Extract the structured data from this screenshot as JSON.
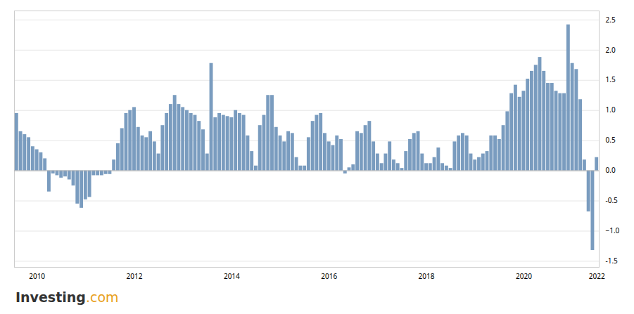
{
  "chart_data": {
    "type": "bar",
    "color": "#7a9cbf",
    "grid": true,
    "ylim": [
      -1.6,
      2.65
    ],
    "yticks": [
      -1.5,
      {
        "value": -1,
        "label": "−1.0"
      },
      -0.5,
      {
        "value": 0,
        "label": "0.0"
      },
      0.5,
      {
        "value": 1,
        "label": "1.0"
      },
      1.5,
      {
        "value": 2,
        "label": "2.0"
      },
      2.5
    ],
    "categories": [
      null,
      null,
      null,
      null,
      null,
      "2010",
      null,
      null,
      null,
      null,
      null,
      null,
      null,
      null,
      null,
      null,
      null,
      null,
      null,
      null,
      null,
      null,
      null,
      null,
      null,
      null,
      null,
      null,
      null,
      "2012",
      null,
      null,
      null,
      null,
      null,
      null,
      null,
      null,
      null,
      null,
      null,
      null,
      null,
      null,
      null,
      null,
      null,
      null,
      null,
      null,
      null,
      null,
      null,
      "2014",
      null,
      null,
      null,
      null,
      null,
      null,
      null,
      null,
      null,
      null,
      null,
      null,
      null,
      null,
      null,
      null,
      null,
      null,
      null,
      null,
      null,
      null,
      null,
      "2016",
      null,
      null,
      null,
      null,
      null,
      null,
      null,
      null,
      null,
      null,
      null,
      null,
      null,
      null,
      null,
      null,
      null,
      null,
      null,
      null,
      null,
      null,
      null,
      "2018",
      null,
      null,
      null,
      null,
      null,
      null,
      null,
      null,
      null,
      null,
      null,
      null,
      null,
      null,
      null,
      null,
      null,
      null,
      null,
      null,
      null,
      null,
      null,
      "2020",
      null,
      null,
      null,
      null,
      null,
      null,
      null,
      null,
      null,
      null,
      null,
      null,
      null,
      null,
      null,
      null,
      null,
      "2022"
    ],
    "values": [
      0.95,
      0.65,
      0.6,
      0.55,
      0.4,
      0.35,
      0.3,
      0.2,
      -0.35,
      -0.05,
      -0.08,
      -0.12,
      -0.1,
      -0.15,
      -0.25,
      -0.55,
      -0.62,
      -0.48,
      -0.44,
      -0.08,
      -0.08,
      -0.08,
      -0.06,
      -0.06,
      0.18,
      0.45,
      0.7,
      0.95,
      1.0,
      1.05,
      0.72,
      0.58,
      0.55,
      0.65,
      0.48,
      0.28,
      0.75,
      0.95,
      1.1,
      1.25,
      1.1,
      1.05,
      1.0,
      0.95,
      0.92,
      0.82,
      0.68,
      0.28,
      1.78,
      0.88,
      0.95,
      0.92,
      0.9,
      0.88,
      1.0,
      0.95,
      0.92,
      0.58,
      0.32,
      0.08,
      0.75,
      0.92,
      1.25,
      1.25,
      0.72,
      0.58,
      0.48,
      0.65,
      0.62,
      0.22,
      0.08,
      0.08,
      0.55,
      0.82,
      0.92,
      0.95,
      0.62,
      0.48,
      0.42,
      0.58,
      0.52,
      -0.05,
      0.05,
      0.1,
      0.65,
      0.62,
      0.75,
      0.82,
      0.48,
      0.28,
      0.12,
      0.28,
      0.48,
      0.18,
      0.12,
      0.04,
      0.32,
      0.52,
      0.62,
      0.65,
      0.28,
      0.12,
      0.12,
      0.22,
      0.38,
      0.12,
      0.08,
      0.04,
      0.48,
      0.58,
      0.62,
      0.58,
      0.28,
      0.18,
      0.22,
      0.28,
      0.32,
      0.58,
      0.58,
      0.52,
      0.75,
      0.98,
      1.28,
      1.42,
      1.22,
      1.32,
      1.52,
      1.65,
      1.75,
      1.88,
      1.65,
      1.45,
      1.45,
      1.32,
      1.28,
      1.28,
      2.42,
      1.78,
      1.68,
      1.18,
      0.18,
      -0.68,
      -1.32,
      0.22
    ],
    "annotations": [
      {
        "text": "Investing",
        "color": "#333333"
      },
      {
        "text": ".com",
        "color": "#e8a020"
      }
    ]
  }
}
